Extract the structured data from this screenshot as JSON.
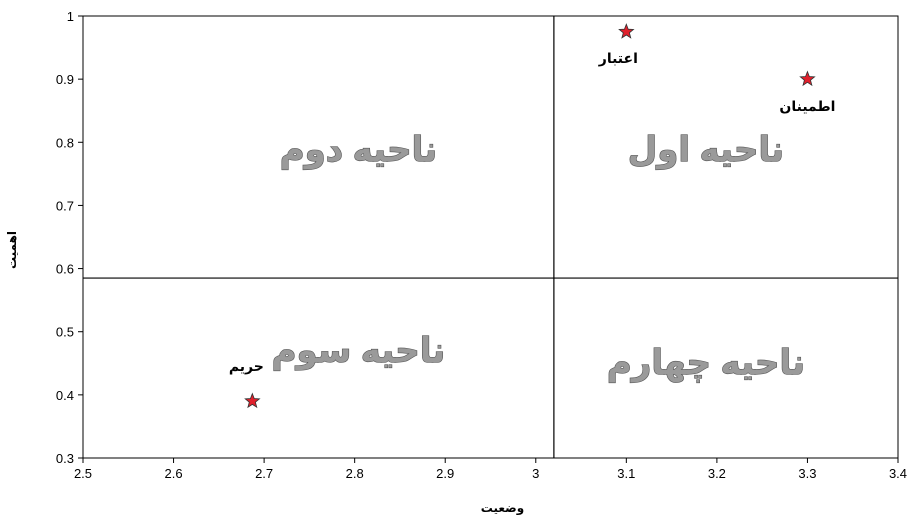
{
  "chart_data": {
    "type": "scatter",
    "title": "",
    "xlabel": "وضعیت",
    "ylabel": "اهمیت",
    "xlim": [
      2.5,
      3.4
    ],
    "ylim": [
      0.3,
      1.0
    ],
    "x_ticks": [
      "2.5",
      "2.6",
      "2.7",
      "2.8",
      "2.9",
      "3",
      "3.1",
      "3.2",
      "3.3",
      "3.4"
    ],
    "y_ticks": [
      "0.3",
      "0.4",
      "0.5",
      "0.6",
      "0.7",
      "0.8",
      "0.9",
      "1"
    ],
    "grid": false,
    "divider_x": 3.02,
    "divider_y": 0.585,
    "marker": "star",
    "marker_color": "#e0202c",
    "points": [
      {
        "label": "اعتبار",
        "x": 3.1,
        "y": 0.975
      },
      {
        "label": "اطمینان",
        "x": 3.3,
        "y": 0.9
      },
      {
        "label": "حریم",
        "x": 2.687,
        "y": 0.39
      }
    ],
    "regions": [
      {
        "label": "ناحیه اول",
        "quadrant": "top-right"
      },
      {
        "label": "ناحیه دوم",
        "quadrant": "top-left"
      },
      {
        "label": "ناحیه سوم",
        "quadrant": "bottom-left"
      },
      {
        "label": "ناحیه چهارم",
        "quadrant": "bottom-right"
      }
    ]
  }
}
